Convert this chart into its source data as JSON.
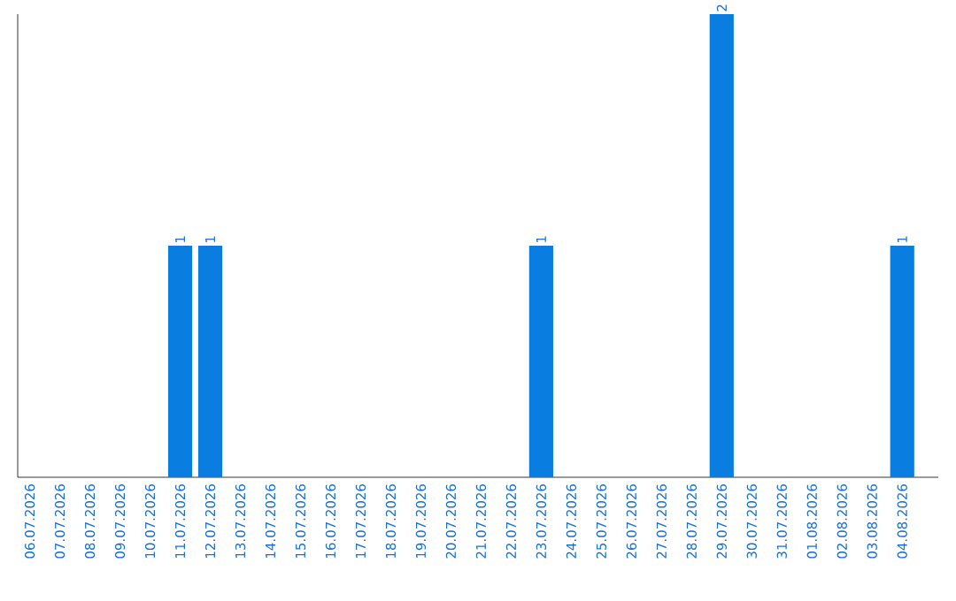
{
  "chart_data": {
    "type": "bar",
    "categories": [
      "06.07.2026",
      "07.07.2026",
      "08.07.2026",
      "09.07.2026",
      "10.07.2026",
      "11.07.2026",
      "12.07.2026",
      "13.07.2026",
      "14.07.2026",
      "15.07.2026",
      "16.07.2026",
      "17.07.2026",
      "18.07.2026",
      "19.07.2026",
      "20.07.2026",
      "21.07.2026",
      "22.07.2026",
      "23.07.2026",
      "24.07.2026",
      "25.07.2026",
      "26.07.2026",
      "27.07.2026",
      "28.07.2026",
      "29.07.2026",
      "30.07.2026",
      "31.07.2026",
      "01.08.2026",
      "02.08.2026",
      "03.08.2026",
      "04.08.2026"
    ],
    "values": [
      0,
      0,
      0,
      0,
      0,
      1,
      1,
      0,
      0,
      0,
      0,
      0,
      0,
      0,
      0,
      0,
      0,
      1,
      0,
      0,
      0,
      0,
      0,
      2,
      0,
      0,
      0,
      0,
      0,
      1
    ],
    "value_labels": [
      null,
      null,
      null,
      null,
      null,
      "1",
      "1",
      null,
      null,
      null,
      null,
      null,
      null,
      null,
      null,
      null,
      null,
      "1",
      null,
      null,
      null,
      null,
      null,
      "2",
      null,
      null,
      null,
      null,
      null,
      "1"
    ],
    "color": "#0a7de0",
    "ylim": [
      0,
      2
    ],
    "tick_labels": "x"
  }
}
